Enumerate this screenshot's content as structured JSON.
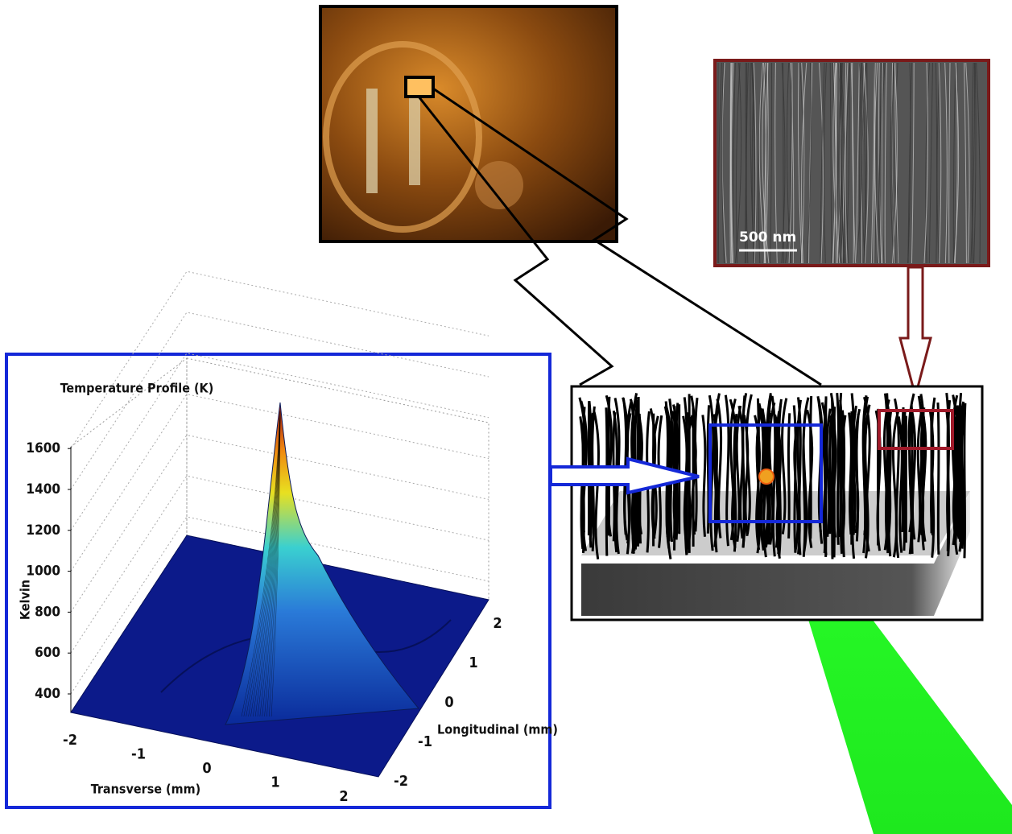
{
  "plot": {
    "title": "Temperature Profile (K)",
    "z_label": "Kelvin",
    "z_ticks": [
      400,
      600,
      800,
      1000,
      1200,
      1400,
      1600
    ],
    "x_label": "Transverse (mm)",
    "x_ticks": [
      -2,
      -1,
      0,
      1,
      2
    ],
    "y_label": "Longitudinal (mm)",
    "y_ticks": [
      -2,
      -1,
      0,
      1,
      2
    ]
  },
  "sem_image": {
    "scale_bar": "500 nm"
  }
}
